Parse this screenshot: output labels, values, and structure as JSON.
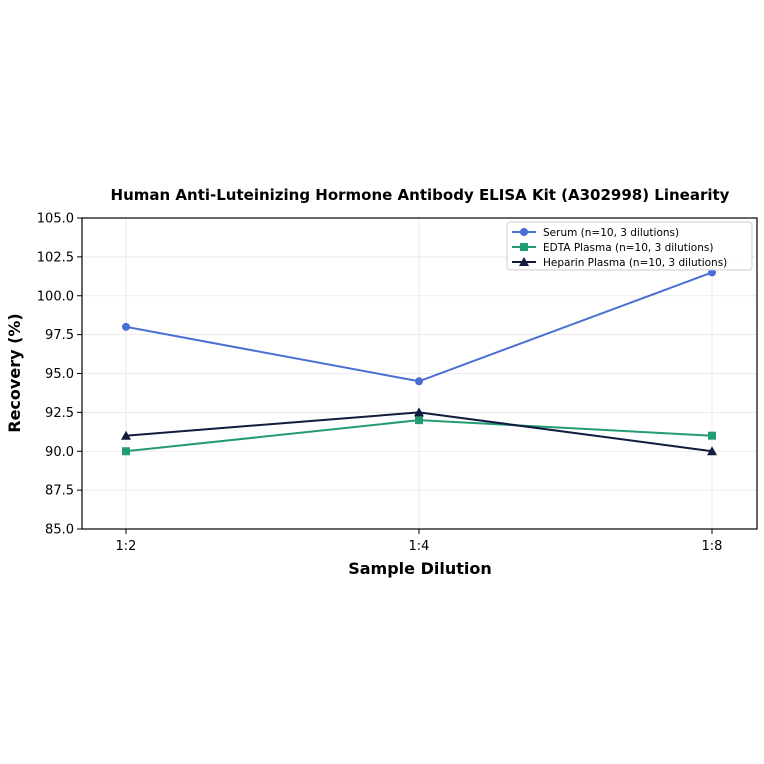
{
  "chart_data": {
    "type": "line",
    "title": "Human Anti-Luteinizing Hormone Antibody ELISA Kit (A302998) Linearity",
    "xlabel": "Sample Dilution",
    "ylabel": "Recovery (%)",
    "categories": [
      "1:2",
      "1:4",
      "1:8"
    ],
    "ylim": [
      85.0,
      105.0
    ],
    "yticks": [
      "85.0",
      "87.5",
      "90.0",
      "92.5",
      "95.0",
      "97.5",
      "100.0",
      "102.5",
      "105.0"
    ],
    "grid": true,
    "legend_position": "top-right",
    "series": [
      {
        "name": "Serum (n=10, 3 dilutions)",
        "values": [
          98.0,
          94.5,
          101.5
        ],
        "color": "#4a6fd4",
        "marker": "circle"
      },
      {
        "name": "EDTA Plasma (n=10, 3 dilutions)",
        "values": [
          90.0,
          92.0,
          91.0
        ],
        "color": "#239b73",
        "marker": "square"
      },
      {
        "name": "Heparin Plasma (n=10, 3 dilutions)",
        "values": [
          91.0,
          92.5,
          90.0
        ],
        "color": "#121c3f",
        "marker": "triangle"
      }
    ]
  }
}
